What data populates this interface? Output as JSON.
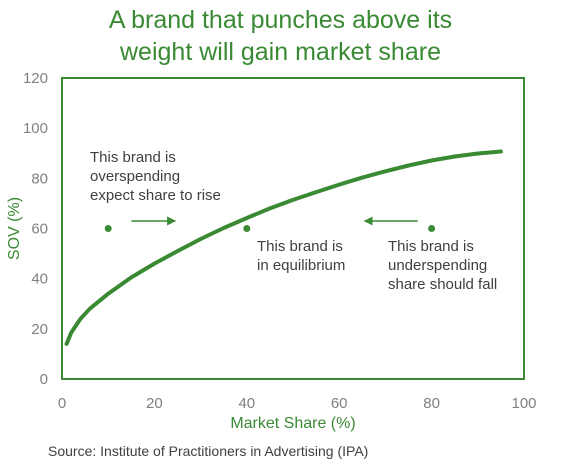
{
  "title_lines": [
    "A brand that punches above its",
    "weight will gain market share"
  ],
  "source": "Source: Institute of Practitioners in Advertising (IPA)",
  "colors": {
    "title": "#3a8a34",
    "curve": "#3a8a34",
    "frame": "#3a8a34",
    "text": "#404040",
    "tick": "#808080"
  },
  "chart_data": {
    "type": "line",
    "xlabel": "Market Share (%)",
    "ylabel": "SOV (%)",
    "xlim": [
      0,
      100
    ],
    "ylim": [
      0,
      120
    ],
    "xticks": [
      0,
      20,
      40,
      60,
      80,
      100
    ],
    "yticks": [
      0,
      20,
      40,
      60,
      80,
      100,
      120
    ],
    "grid": false,
    "series": [
      {
        "x": [
          1,
          2,
          4,
          6,
          10,
          15,
          20,
          25,
          30,
          35,
          40,
          45,
          50,
          55,
          60,
          65,
          70,
          75,
          80,
          85,
          90,
          95
        ],
        "y": [
          14,
          18.5,
          24,
          28,
          34,
          40.5,
          46,
          51,
          55.8,
          60.2,
          64.2,
          68,
          71.4,
          74.5,
          77.5,
          80.3,
          82.8,
          85.1,
          87.1,
          88.7,
          89.9,
          90.7
        ]
      }
    ],
    "points": [
      {
        "x": 10,
        "y": 60
      },
      {
        "x": 40,
        "y": 60
      },
      {
        "x": 80,
        "y": 60
      }
    ],
    "arrows": [
      {
        "from": [
          15,
          63
        ],
        "to": [
          24.5,
          63
        ]
      },
      {
        "from": [
          77,
          63
        ],
        "to": [
          65.5,
          63
        ]
      }
    ],
    "annotations": [
      {
        "id": "overspending",
        "lines": [
          "This brand is",
          "overspending",
          "expect share to rise"
        ]
      },
      {
        "id": "equilibrium",
        "lines": [
          "This brand is",
          "in equilibrium"
        ]
      },
      {
        "id": "underspending",
        "lines": [
          "This brand is",
          "underspending",
          "share should fall"
        ]
      }
    ]
  }
}
